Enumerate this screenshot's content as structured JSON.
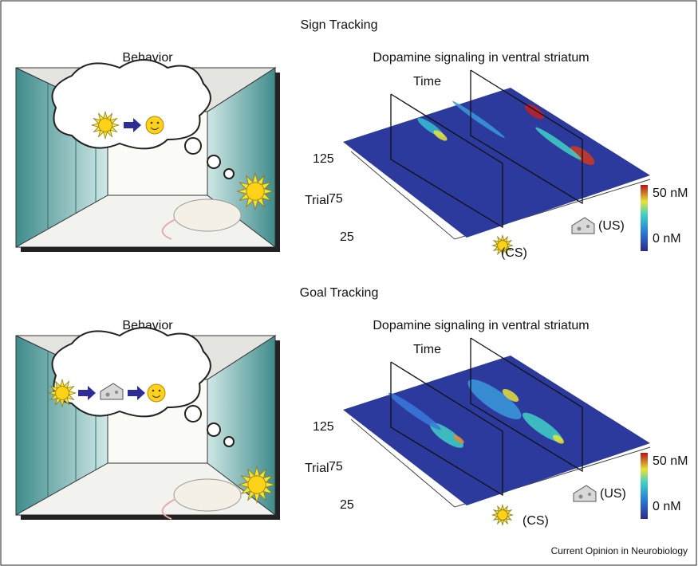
{
  "panels": [
    {
      "title": "Sign Tracking",
      "behavior_label": "Behavior",
      "plot_title": "Dopamine signaling in ventral striatum",
      "time_label": "Time",
      "trial_label": "Trial",
      "trial_ticks": [
        "125",
        "75",
        "25"
      ],
      "colorbar_labels": [
        "50 nM",
        "0 nM"
      ],
      "cs_label": "(CS)",
      "us_label": "(US)"
    },
    {
      "title": "Goal Tracking",
      "behavior_label": "Behavior",
      "plot_title": "Dopamine signaling in ventral striatum",
      "time_label": "Time",
      "trial_label": "Trial",
      "trial_ticks": [
        "125",
        "75",
        "25"
      ],
      "colorbar_labels": [
        "50 nM",
        "0 nM"
      ],
      "cs_label": "(CS)",
      "us_label": "(US)"
    }
  ],
  "footer": "Current Opinion in Neurobiology"
}
